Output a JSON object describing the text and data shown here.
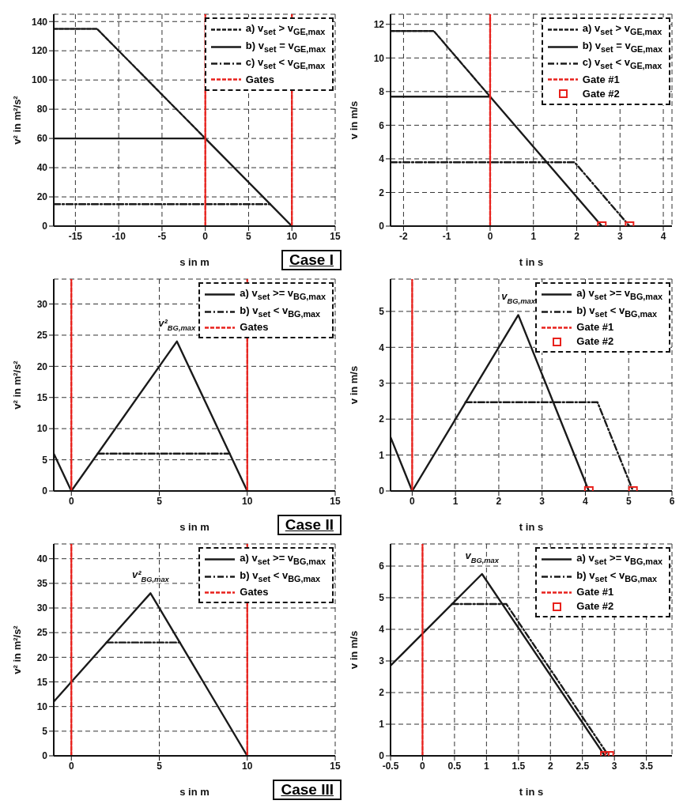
{
  "chart_data": [
    {
      "type": "line",
      "xlabel": "s in m",
      "ylabel": "v² in m²/s²",
      "xlim": [
        -17.5,
        15
      ],
      "xticks": [
        -15,
        -10,
        -5,
        0,
        5,
        10,
        15
      ],
      "ylim": [
        0,
        145
      ],
      "yticks": [
        0,
        20,
        40,
        60,
        80,
        100,
        120,
        140
      ],
      "grid": true,
      "legend": "top right",
      "annotations": [
        "Case I"
      ],
      "series": [
        {
          "name": "a) v$_{set}$ > v$_{GE,max}$",
          "color": "#1a1a1a",
          "line_style": "dotted",
          "x": [
            -17.5,
            -12.5,
            0
          ],
          "values": [
            135,
            135,
            60
          ]
        },
        {
          "name": "b) v$_{set}$ = v$_{GE,max}$",
          "color": "#1a1a1a",
          "line_style": "solid",
          "x": [
            -17.5,
            0,
            10
          ],
          "values": [
            60,
            60,
            0
          ]
        },
        {
          "name": "c) v$_{set}$ < v$_{GE,max}$",
          "color": "#1a1a1a",
          "line_style": "dashdot",
          "x": [
            -17.5,
            7.5
          ],
          "values": [
            15,
            15
          ]
        },
        {
          "name": "Gates",
          "color": "#e8211c",
          "line_style": "dotted",
          "x": [
            0,
            0
          ],
          "values": [
            0,
            145
          ]
        },
        {
          "color": "#e8211c",
          "line_style": "dotted",
          "x": [
            10,
            10
          ],
          "values": [
            0,
            145
          ]
        }
      ]
    },
    {
      "type": "line",
      "xlabel": "t in s",
      "ylabel": "v in m/s",
      "xlim": [
        -2.3,
        4.2
      ],
      "xticks": [
        -2,
        -1,
        0,
        1,
        2,
        3,
        4
      ],
      "ylim": [
        0,
        12.6
      ],
      "yticks": [
        0,
        2,
        4,
        6,
        8,
        10,
        12
      ],
      "grid": true,
      "legend": "top right",
      "series": [
        {
          "name": "a) v$_{set}$ > v$_{GE,max}$",
          "color": "#1a1a1a",
          "line_style": "dotted",
          "x": [
            -2.3,
            -1.3,
            0
          ],
          "values": [
            11.6,
            11.6,
            7.7
          ]
        },
        {
          "name": "b) v$_{set}$ = v$_{GE,max}$",
          "color": "#1a1a1a",
          "line_style": "solid",
          "x": [
            -2.3,
            0,
            2.58
          ],
          "values": [
            7.7,
            7.7,
            0
          ]
        },
        {
          "name": "c) v$_{set}$ < v$_{GE,max}$",
          "color": "#1a1a1a",
          "line_style": "dashdot",
          "x": [
            -2.3,
            1.95,
            3.22
          ],
          "values": [
            3.8,
            3.8,
            0
          ]
        },
        {
          "name": "Gate #1",
          "color": "#e8211c",
          "line_style": "dotted",
          "x": [
            0,
            0
          ],
          "values": [
            0,
            12.6
          ]
        },
        {
          "name": "Gate #2",
          "type": "scatter",
          "marker": "square",
          "color": "#e8211c",
          "x": [
            2.58,
            3.22
          ],
          "values": [
            0,
            0
          ]
        }
      ]
    },
    {
      "type": "line",
      "xlabel": "s in m",
      "ylabel": "v²  in m²/s²",
      "xlim": [
        -1,
        15
      ],
      "xticks": [
        0,
        5,
        10,
        15
      ],
      "ylim": [
        0,
        34
      ],
      "yticks": [
        0,
        5,
        10,
        15,
        20,
        25,
        30
      ],
      "grid": true,
      "legend": "top right",
      "annotations": [
        {
          "text": "v²$_{BG,max}$",
          "x": 6,
          "y": 24
        },
        "Case II"
      ],
      "series": [
        {
          "name": "a) v$_{set}$ >= v$_{BG,max}$",
          "color": "#1a1a1a",
          "line_style": "solid",
          "x": [
            -1,
            0,
            6,
            10
          ],
          "values": [
            6,
            0,
            24,
            0
          ]
        },
        {
          "name": "b) v$_{set}$ < v$_{BG,max}$",
          "color": "#1a1a1a",
          "line_style": "dashdot",
          "x": [
            1.5,
            9
          ],
          "values": [
            6,
            6
          ]
        },
        {
          "name": "Gates",
          "color": "#e8211c",
          "line_style": "dotted",
          "x": [
            0,
            0
          ],
          "values": [
            0,
            34
          ]
        },
        {
          "color": "#e8211c",
          "line_style": "dotted",
          "x": [
            10,
            10
          ],
          "values": [
            0,
            34
          ]
        }
      ]
    },
    {
      "type": "line",
      "xlabel": "t  in s",
      "ylabel": "v  in m/s",
      "xlim": [
        -0.5,
        6
      ],
      "xticks": [
        0,
        1,
        2,
        3,
        4,
        5,
        6
      ],
      "ylim": [
        0,
        5.9
      ],
      "yticks": [
        0,
        1,
        2,
        3,
        4,
        5
      ],
      "grid": true,
      "legend": "top right",
      "annotations": [
        {
          "text": "v$_{BG,max}$",
          "x": 2.45,
          "y": 4.9
        }
      ],
      "series": [
        {
          "name": "a) v$_{set}$ >= v$_{BG,max}$",
          "color": "#1a1a1a",
          "line_style": "solid",
          "x": [
            -0.5,
            0,
            2.45,
            4.08
          ],
          "values": [
            1.5,
            0,
            4.9,
            0
          ]
        },
        {
          "name": "b) v$_{set}$ < v$_{BG,max}$",
          "color": "#1a1a1a",
          "line_style": "dashdot",
          "x": [
            1.23,
            4.28,
            5.1
          ],
          "values": [
            2.47,
            2.47,
            0
          ]
        },
        {
          "name": "Gate #1",
          "color": "#e8211c",
          "line_style": "dotted",
          "x": [
            0,
            0
          ],
          "values": [
            0,
            5.9
          ]
        },
        {
          "name": "Gate #2",
          "type": "scatter",
          "marker": "square",
          "color": "#e8211c",
          "x": [
            4.08,
            5.1
          ],
          "values": [
            0,
            0
          ]
        }
      ]
    },
    {
      "type": "line",
      "xlabel": "s in m",
      "ylabel": "v²  in m²/s²",
      "xlim": [
        -1,
        15
      ],
      "xticks": [
        0,
        5,
        10,
        15
      ],
      "ylim": [
        0,
        43
      ],
      "yticks": [
        0,
        5,
        10,
        15,
        20,
        25,
        30,
        35,
        40
      ],
      "grid": true,
      "legend": "top right",
      "annotations": [
        {
          "text": "v²$_{BG,max}$",
          "x": 4.5,
          "y": 33
        },
        "Case III"
      ],
      "series": [
        {
          "name": "a) v$_{set}$ >= v$_{BG,max}$",
          "color": "#1a1a1a",
          "line_style": "solid",
          "x": [
            -1,
            4.5,
            10
          ],
          "values": [
            11,
            33,
            0
          ]
        },
        {
          "name": "b) v$_{set}$ < v$_{BG,max}$",
          "color": "#1a1a1a",
          "line_style": "dashdot",
          "x": [
            2,
            6.17
          ],
          "values": [
            23,
            23
          ]
        },
        {
          "name": "Gates",
          "color": "#e8211c",
          "line_style": "dotted",
          "x": [
            0,
            0
          ],
          "values": [
            0,
            43
          ]
        },
        {
          "color": "#e8211c",
          "line_style": "dotted",
          "x": [
            10,
            10
          ],
          "values": [
            0,
            43
          ]
        }
      ]
    },
    {
      "type": "line",
      "xlabel": "t  in s",
      "ylabel": "v  in m/s",
      "xlim": [
        -0.5,
        3.9
      ],
      "xticks": [
        -0.5,
        0,
        0.5,
        1,
        1.5,
        2,
        2.5,
        3,
        3.5
      ],
      "ylim": [
        0,
        6.7
      ],
      "yticks": [
        0,
        1,
        2,
        3,
        4,
        5,
        6
      ],
      "grid": true,
      "legend": "top right",
      "annotations": [
        {
          "text": "v$_{BG,max}$",
          "x": 0.93,
          "y": 5.75
        }
      ],
      "series": [
        {
          "name": "a) v$_{set}$ >= v$_{BG,max}$",
          "color": "#1a1a1a",
          "line_style": "solid",
          "x": [
            -0.5,
            0.93,
            2.85
          ],
          "values": [
            2.85,
            5.75,
            0
          ]
        },
        {
          "name": "b) v$_{set}$ < v$_{BG,max}$",
          "color": "#1a1a1a",
          "line_style": "dashdot",
          "x": [
            0.46,
            1.31,
            2.91
          ],
          "values": [
            4.8,
            4.8,
            0
          ]
        },
        {
          "name": "Gate #1",
          "color": "#e8211c",
          "line_style": "dotted",
          "x": [
            0,
            0
          ],
          "values": [
            0,
            6.7
          ]
        },
        {
          "name": "Gate #2",
          "type": "scatter",
          "marker": "square",
          "color": "#e8211c",
          "x": [
            2.85,
            2.92
          ],
          "values": [
            0,
            0
          ]
        }
      ]
    }
  ]
}
